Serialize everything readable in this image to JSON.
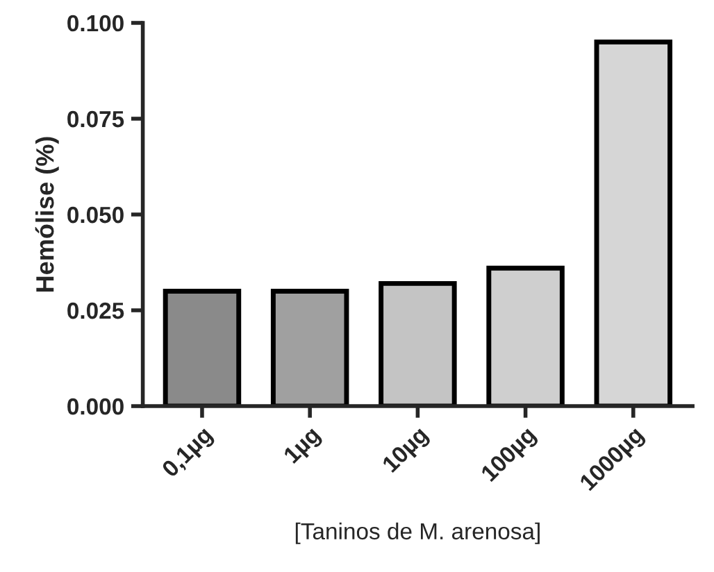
{
  "chart_data": {
    "type": "bar",
    "xlabel": "[Taninos de M. arenosa]",
    "ylabel": "Hemólise (%)",
    "categories": [
      "0,1µg",
      "1µg",
      "10µg",
      "100µg",
      "1000µg"
    ],
    "values": [
      0.03,
      0.03,
      0.032,
      0.036,
      0.095
    ],
    "colors": [
      "#8a8a8a",
      "#a0a0a0",
      "#c4c4c4",
      "#cfcfcf",
      "#d6d6d6"
    ],
    "ylim": [
      0,
      0.1
    ],
    "yticks": [
      {
        "value": 0,
        "label": "0.000"
      },
      {
        "value": 0.025,
        "label": "0.025"
      },
      {
        "value": 0.05,
        "label": "0.050"
      },
      {
        "value": 0.075,
        "label": "0.075"
      },
      {
        "value": 0.1,
        "label": "0.100"
      }
    ],
    "grid": false,
    "legend": false
  }
}
